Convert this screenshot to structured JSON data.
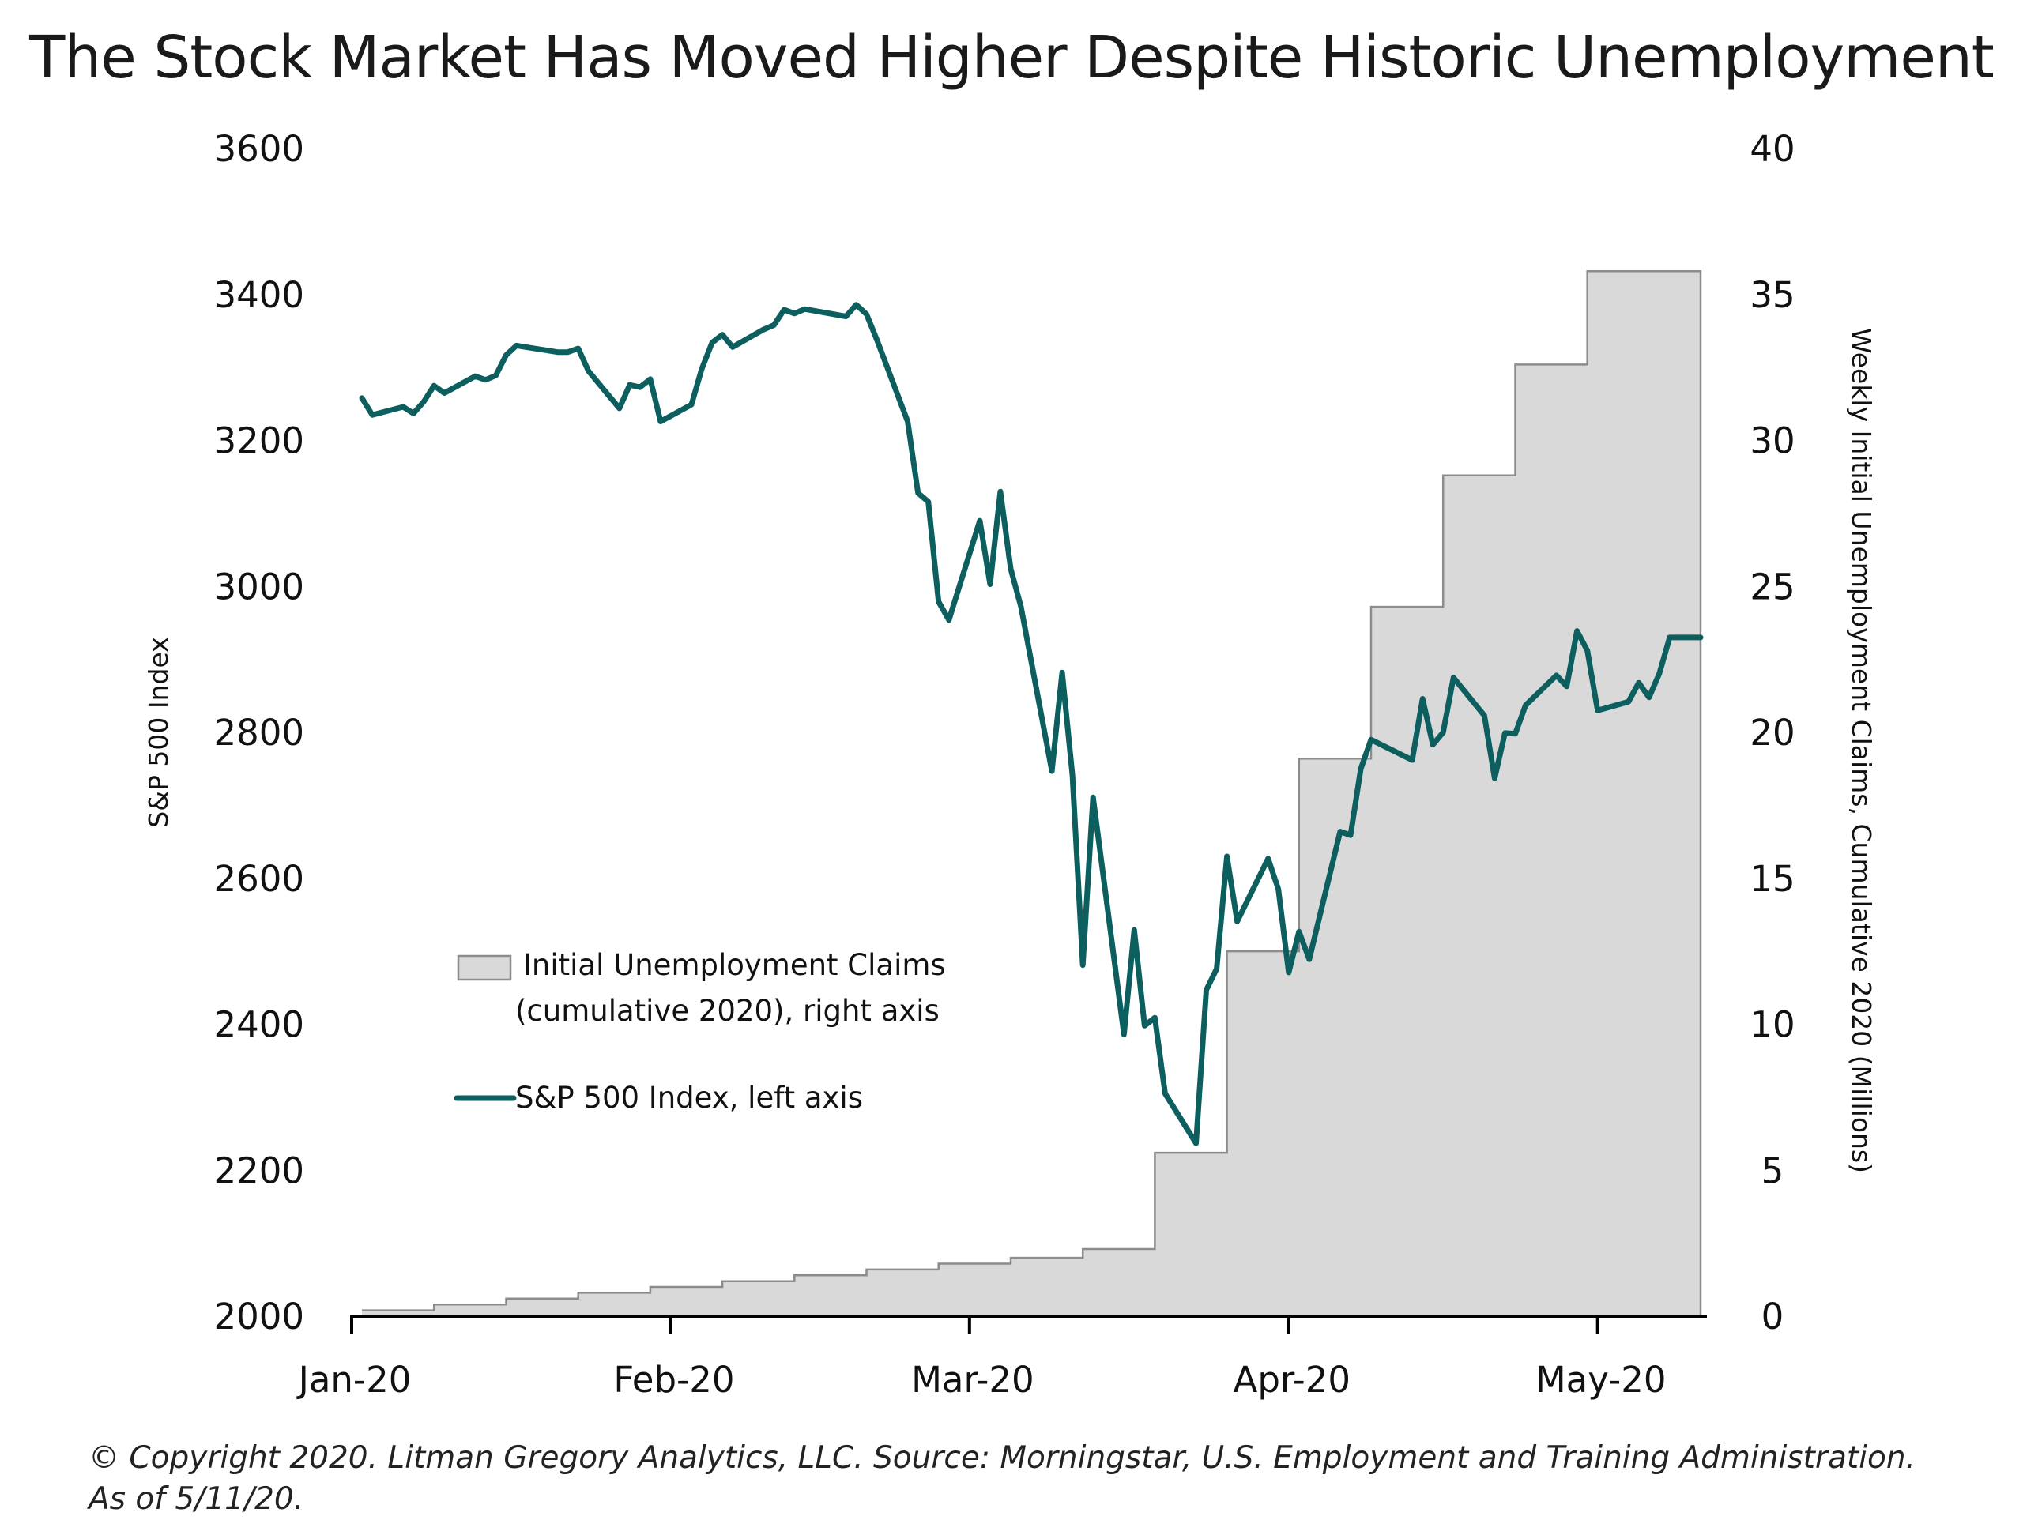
{
  "title": "The Stock Market Has Moved Higher Despite Historic Unemployment",
  "footer": {
    "line1": "© Copyright 2020. Litman Gregory Analytics, LLC. Source: Morningstar, U.S. Employment and Training Administration.",
    "line2": "As of 5/11/20."
  },
  "chart_data": {
    "type": "line",
    "title": "The Stock Market Has Moved Higher Despite Historic Unemployment",
    "x_range": [
      "2020-01-02",
      "2020-05-11"
    ],
    "x_ticks": [
      {
        "date": "2020-01-01",
        "label": "Jan-20"
      },
      {
        "date": "2020-02-01",
        "label": "Feb-20"
      },
      {
        "date": "2020-03-01",
        "label": "Mar-20"
      },
      {
        "date": "2020-04-01",
        "label": "Apr-20"
      },
      {
        "date": "2020-05-01",
        "label": "May-20"
      }
    ],
    "y_left": {
      "label": "S&P 500 Index",
      "min": 2000,
      "max": 3600,
      "ticks": [
        2000,
        2200,
        2400,
        2600,
        2800,
        3000,
        3200,
        3400,
        3600
      ]
    },
    "y_right": {
      "label": "Weekly Initial Unemployment Claims, Cumulative 2020 (Millions)",
      "min": 0,
      "max": 40,
      "ticks": [
        0,
        5,
        10,
        15,
        20,
        25,
        30,
        35,
        40
      ]
    },
    "grid": false,
    "legend_position": "center-left",
    "colors": {
      "sp500": "#0d5e5e",
      "claims_fill": "#d9d9d9",
      "claims_stroke": "#8c8c8c"
    },
    "series": [
      {
        "name": "Initial Unemployment Claims (cumulative 2020), right axis",
        "legend_lines": [
          "Initial Unemployment Claims",
          "(cumulative 2020), right axis"
        ],
        "axis": "right",
        "style": "step-area",
        "points": [
          [
            "2020-01-02",
            0.2
          ],
          [
            "2020-01-09",
            0.4
          ],
          [
            "2020-01-16",
            0.6
          ],
          [
            "2020-01-23",
            0.8
          ],
          [
            "2020-01-30",
            1.0
          ],
          [
            "2020-02-06",
            1.2
          ],
          [
            "2020-02-13",
            1.4
          ],
          [
            "2020-02-20",
            1.6
          ],
          [
            "2020-02-27",
            1.8
          ],
          [
            "2020-03-05",
            2.0
          ],
          [
            "2020-03-12",
            2.3
          ],
          [
            "2020-03-19",
            5.6
          ],
          [
            "2020-03-26",
            12.5
          ],
          [
            "2020-04-02",
            19.1
          ],
          [
            "2020-04-09",
            24.3
          ],
          [
            "2020-04-16",
            28.8
          ],
          [
            "2020-04-23",
            32.6
          ],
          [
            "2020-04-30",
            35.8
          ],
          [
            "2020-05-11",
            35.8
          ]
        ]
      },
      {
        "name": "S&P 500 Index, left axis",
        "axis": "left",
        "style": "line",
        "points": [
          [
            "2020-01-02",
            3258
          ],
          [
            "2020-01-03",
            3235
          ],
          [
            "2020-01-06",
            3246
          ],
          [
            "2020-01-07",
            3237
          ],
          [
            "2020-01-08",
            3253
          ],
          [
            "2020-01-09",
            3275
          ],
          [
            "2020-01-10",
            3265
          ],
          [
            "2020-01-13",
            3288
          ],
          [
            "2020-01-14",
            3283
          ],
          [
            "2020-01-15",
            3289
          ],
          [
            "2020-01-16",
            3317
          ],
          [
            "2020-01-17",
            3330
          ],
          [
            "2020-01-21",
            3321
          ],
          [
            "2020-01-22",
            3321
          ],
          [
            "2020-01-23",
            3326
          ],
          [
            "2020-01-24",
            3295
          ],
          [
            "2020-01-27",
            3244
          ],
          [
            "2020-01-28",
            3276
          ],
          [
            "2020-01-29",
            3273
          ],
          [
            "2020-01-30",
            3284
          ],
          [
            "2020-01-31",
            3226
          ],
          [
            "2020-02-03",
            3249
          ],
          [
            "2020-02-04",
            3298
          ],
          [
            "2020-02-05",
            3334
          ],
          [
            "2020-02-06",
            3345
          ],
          [
            "2020-02-07",
            3328
          ],
          [
            "2020-02-10",
            3352
          ],
          [
            "2020-02-11",
            3358
          ],
          [
            "2020-02-12",
            3379
          ],
          [
            "2020-02-13",
            3374
          ],
          [
            "2020-02-14",
            3380
          ],
          [
            "2020-02-18",
            3370
          ],
          [
            "2020-02-19",
            3386
          ],
          [
            "2020-02-20",
            3373
          ],
          [
            "2020-02-21",
            3338
          ],
          [
            "2020-02-24",
            3226
          ],
          [
            "2020-02-25",
            3128
          ],
          [
            "2020-02-26",
            3116
          ],
          [
            "2020-02-27",
            2979
          ],
          [
            "2020-02-28",
            2954
          ],
          [
            "2020-03-02",
            3090
          ],
          [
            "2020-03-03",
            3003
          ],
          [
            "2020-03-04",
            3130
          ],
          [
            "2020-03-05",
            3024
          ],
          [
            "2020-03-06",
            2972
          ],
          [
            "2020-03-09",
            2747
          ],
          [
            "2020-03-10",
            2882
          ],
          [
            "2020-03-11",
            2741
          ],
          [
            "2020-03-12",
            2481
          ],
          [
            "2020-03-13",
            2711
          ],
          [
            "2020-03-16",
            2386
          ],
          [
            "2020-03-17",
            2529
          ],
          [
            "2020-03-18",
            2398
          ],
          [
            "2020-03-19",
            2409
          ],
          [
            "2020-03-20",
            2305
          ],
          [
            "2020-03-23",
            2237
          ],
          [
            "2020-03-24",
            2447
          ],
          [
            "2020-03-25",
            2476
          ],
          [
            "2020-03-26",
            2630
          ],
          [
            "2020-03-27",
            2541
          ],
          [
            "2020-03-30",
            2627
          ],
          [
            "2020-03-31",
            2585
          ],
          [
            "2020-04-01",
            2471
          ],
          [
            "2020-04-02",
            2527
          ],
          [
            "2020-04-03",
            2489
          ],
          [
            "2020-04-06",
            2664
          ],
          [
            "2020-04-07",
            2659
          ],
          [
            "2020-04-08",
            2750
          ],
          [
            "2020-04-09",
            2790
          ],
          [
            "2020-04-13",
            2762
          ],
          [
            "2020-04-14",
            2846
          ],
          [
            "2020-04-15",
            2783
          ],
          [
            "2020-04-16",
            2800
          ],
          [
            "2020-04-17",
            2875
          ],
          [
            "2020-04-20",
            2823
          ],
          [
            "2020-04-21",
            2737
          ],
          [
            "2020-04-22",
            2799
          ],
          [
            "2020-04-23",
            2798
          ],
          [
            "2020-04-24",
            2837
          ],
          [
            "2020-04-27",
            2878
          ],
          [
            "2020-04-28",
            2863
          ],
          [
            "2020-04-29",
            2939
          ],
          [
            "2020-04-30",
            2912
          ],
          [
            "2020-05-01",
            2830
          ],
          [
            "2020-05-04",
            2842
          ],
          [
            "2020-05-05",
            2868
          ],
          [
            "2020-05-06",
            2848
          ],
          [
            "2020-05-07",
            2881
          ],
          [
            "2020-05-08",
            2930
          ],
          [
            "2020-05-11",
            2930
          ]
        ]
      }
    ]
  }
}
